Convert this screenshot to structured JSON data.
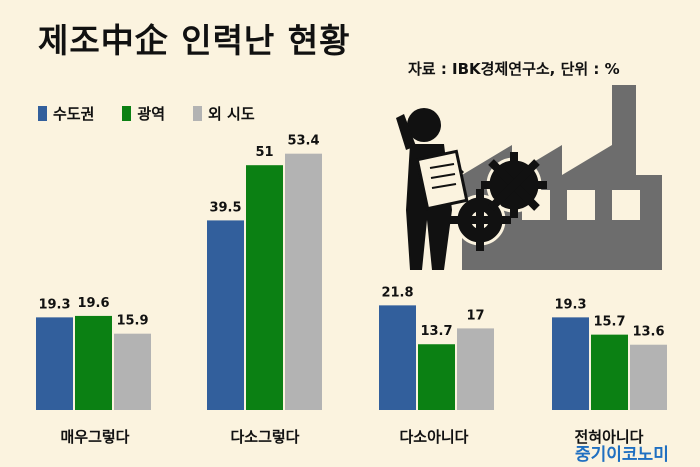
{
  "title": "제조中企 인력난 현황",
  "source": "자료 : IBK경제연구소, 단위 : %",
  "watermark": "중기이코노미",
  "colors": {
    "seoul_metro": "#325f9c",
    "metropolitan": "#0b8013",
    "other": "#b3b3b3",
    "background": "#fbf3df"
  },
  "illustration": {
    "icon": "worker-factory-gears-icon"
  },
  "chart_data": {
    "type": "bar",
    "title": "",
    "categories": [
      "매우그렇다",
      "다소그렇다",
      "다소아니다",
      "전혀아니다"
    ],
    "series": [
      {
        "name": "수도권",
        "values": [
          19.3,
          39.5,
          21.8,
          19.3
        ],
        "color": "#325f9c"
      },
      {
        "name": "광역",
        "values": [
          19.6,
          51,
          13.7,
          15.7
        ],
        "color": "#0b8013"
      },
      {
        "name": "외 시도",
        "values": [
          15.9,
          53.4,
          17,
          13.6
        ],
        "color": "#b3b3b3"
      }
    ],
    "value_labels": [
      [
        "19.3",
        "39.5",
        "21.8",
        "19.3"
      ],
      [
        "19.6",
        "51",
        "13.7",
        "15.7"
      ],
      [
        "15.9",
        "53.4",
        "17",
        "13.6"
      ]
    ],
    "ylim": [
      0,
      60
    ],
    "grid": false,
    "legend": "top-left"
  }
}
